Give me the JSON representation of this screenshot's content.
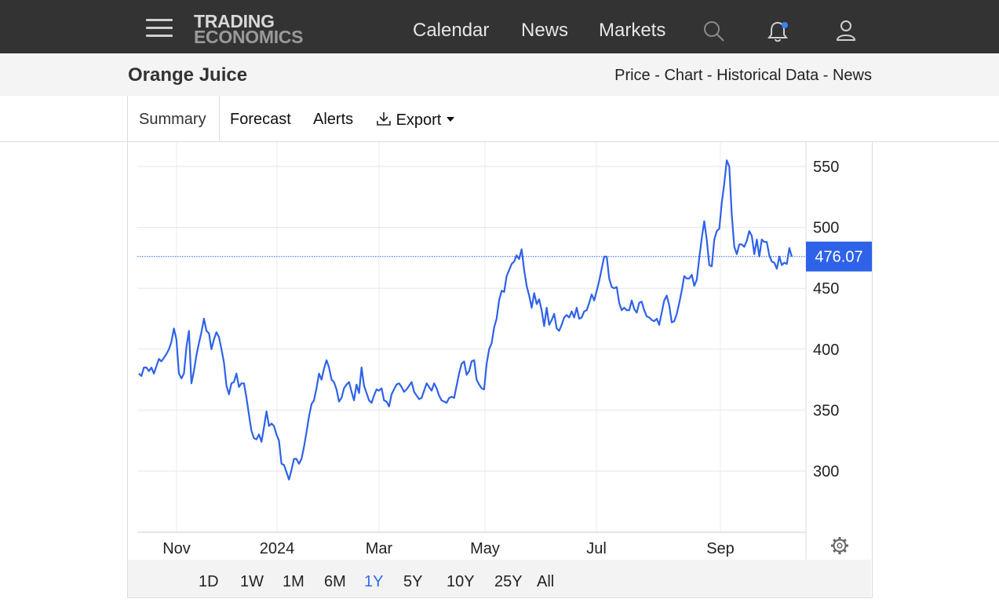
{
  "header": {
    "logo_line1": "TRADING",
    "logo_line2": "ECONOMICS",
    "nav": [
      "Calendar",
      "News",
      "Markets"
    ],
    "icons": [
      "menu-icon",
      "search-icon",
      "bell-icon",
      "user-icon"
    ]
  },
  "page": {
    "title": "Orange Juice",
    "breadcrumbs": [
      "Price",
      "Chart",
      "Historical Data",
      "News"
    ],
    "breadcrumb_sep": " - "
  },
  "tabs": {
    "summary": "Summary",
    "forecast": "Forecast",
    "alerts": "Alerts",
    "export": "Export"
  },
  "ranges": [
    "1D",
    "1W",
    "1M",
    "6M",
    "1Y",
    "5Y",
    "10Y",
    "25Y",
    "All"
  ],
  "active_range": "1Y",
  "colors": {
    "line": "#2e62e8",
    "price_tag": "#2e62e8",
    "topbar": "#333333",
    "active_range": "#2f6cf0"
  },
  "chart_data": {
    "type": "line",
    "title": "",
    "xlabel": "",
    "ylabel": "",
    "ylim": [
      255,
      560
    ],
    "yticks": [
      300,
      350,
      400,
      450,
      500,
      550
    ],
    "x_tick_labels": [
      "Nov",
      "2024",
      "Mar",
      "May",
      "Jul",
      "Sep"
    ],
    "last_value_label": "476.07",
    "last_value": 476.07,
    "grid": true,
    "series": [
      {
        "values": [
          380,
          378,
          385,
          385,
          382,
          385,
          380,
          386,
          392,
          390,
          393,
          396,
          400,
          406,
          417,
          408,
          380,
          376,
          380,
          402,
          415,
          372,
          382,
          395,
          405,
          414,
          425,
          415,
          413,
          400,
          408,
          414,
          410,
          400,
          389,
          370,
          363,
          372,
          373,
          380,
          369,
          372,
          372,
          360,
          346,
          333,
          327,
          326,
          330,
          324,
          336,
          349,
          337,
          339,
          337,
          330,
          325,
          306,
          305,
          299,
          293,
          301,
          310,
          310,
          306,
          310,
          320,
          332,
          345,
          355,
          358,
          368,
          380,
          375,
          384,
          391,
          385,
          375,
          373,
          367,
          357,
          360,
          368,
          371,
          373,
          365,
          358,
          371,
          364,
          385,
          370,
          364,
          358,
          356,
          362,
          367,
          366,
          368,
          358,
          357,
          353,
          363,
          367,
          371,
          372,
          369,
          365,
          367,
          370,
          373,
          365,
          362,
          359,
          360,
          366,
          372,
          369,
          366,
          372,
          368,
          362,
          358,
          357,
          356,
          360,
          361,
          360,
          370,
          380,
          388,
          390,
          379,
          382,
          390,
          391,
          375,
          371,
          368,
          367,
          388,
          400,
          405,
          418,
          425,
          440,
          448,
          447,
          460,
          465,
          470,
          472,
          477,
          474,
          482,
          465,
          452,
          444,
          434,
          446,
          437,
          441,
          432,
          419,
          434,
          420,
          424,
          429,
          417,
          415,
          420,
          426,
          428,
          426,
          431,
          426,
          434,
          425,
          426,
          431,
          432,
          438,
          445,
          440,
          448,
          456,
          466,
          476,
          476,
          458,
          451,
          450,
          451,
          438,
          432,
          434,
          432,
          432,
          440,
          433,
          430,
          438,
          439,
          432,
          427,
          426,
          424,
          423,
          425,
          420,
          430,
          440,
          444,
          436,
          422,
          423,
          429,
          438,
          448,
          460,
          458,
          458,
          461,
          452,
          457,
          475,
          491,
          505,
          490,
          469,
          468,
          490,
          497,
          499,
          520,
          536,
          555,
          550,
          510,
          484,
          478,
          486,
          486,
          484,
          489,
          497,
          493,
          478,
          490,
          476,
          490,
          488,
          488,
          477,
          472,
          471,
          466,
          476,
          469,
          471,
          470,
          483,
          476
        ]
      }
    ]
  }
}
